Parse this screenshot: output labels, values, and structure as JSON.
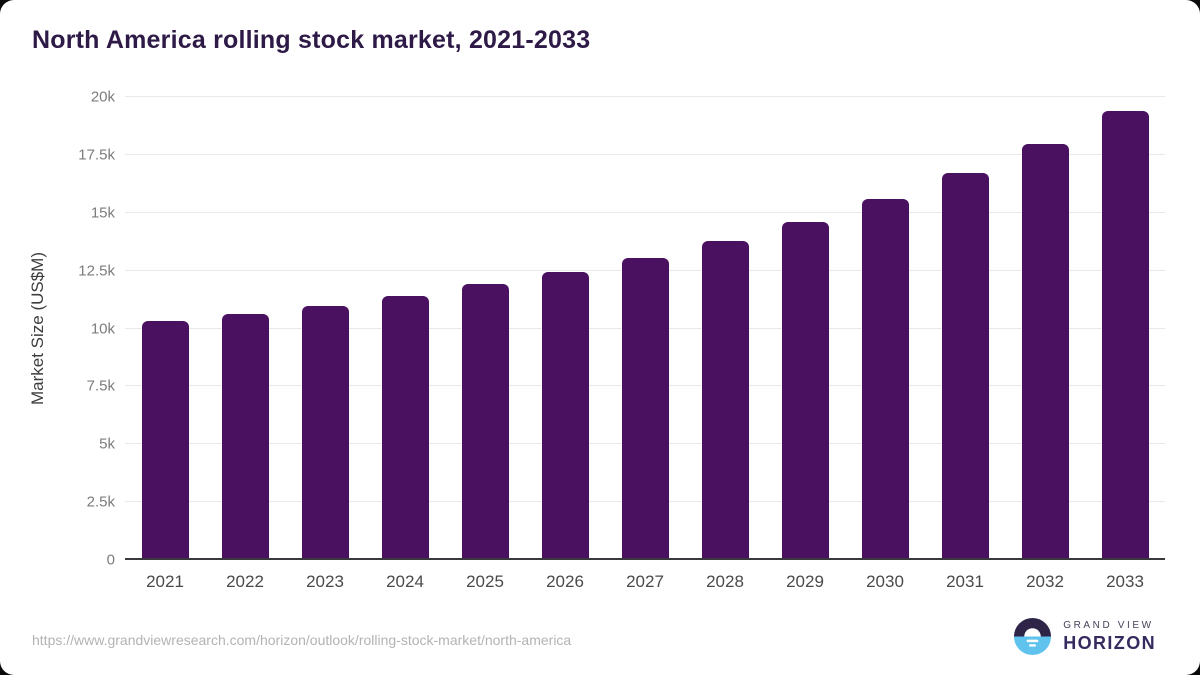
{
  "page": {
    "title": "North America rolling stock market, 2021-2033",
    "source_url": "https://www.grandviewresearch.com/horizon/outlook/rolling-stock-market/north-america"
  },
  "logo": {
    "line1": "GRAND VIEW",
    "line2": "HORIZON",
    "icon": "horizon-sun-icon",
    "colors": {
      "dark": "#2e2447",
      "blue": "#5fc3ee",
      "text": "#372a5e"
    }
  },
  "chart_data": {
    "type": "bar",
    "title": "North America rolling stock market, 2021-2033",
    "categories": [
      "2021",
      "2022",
      "2023",
      "2024",
      "2025",
      "2026",
      "2027",
      "2028",
      "2029",
      "2030",
      "2031",
      "2032",
      "2033"
    ],
    "values": [
      10300,
      10600,
      10920,
      11360,
      11880,
      12430,
      13020,
      13760,
      14590,
      15580,
      16710,
      17940,
      19400
    ],
    "unit": "US$M",
    "xlabel": "",
    "ylabel": "Market Size (US$M)",
    "ylim": [
      0,
      20000
    ],
    "yticks": [
      {
        "value": 0,
        "label": "0"
      },
      {
        "value": 2500,
        "label": "2.5k"
      },
      {
        "value": 5000,
        "label": "5k"
      },
      {
        "value": 7500,
        "label": "7.5k"
      },
      {
        "value": 10000,
        "label": "10k"
      },
      {
        "value": 12500,
        "label": "12.5k"
      },
      {
        "value": 15000,
        "label": "15k"
      },
      {
        "value": 17500,
        "label": "17.5k"
      },
      {
        "value": 20000,
        "label": "20k"
      }
    ],
    "grid": "horizontal",
    "legend": "none",
    "bar_color": "#4a1160"
  }
}
